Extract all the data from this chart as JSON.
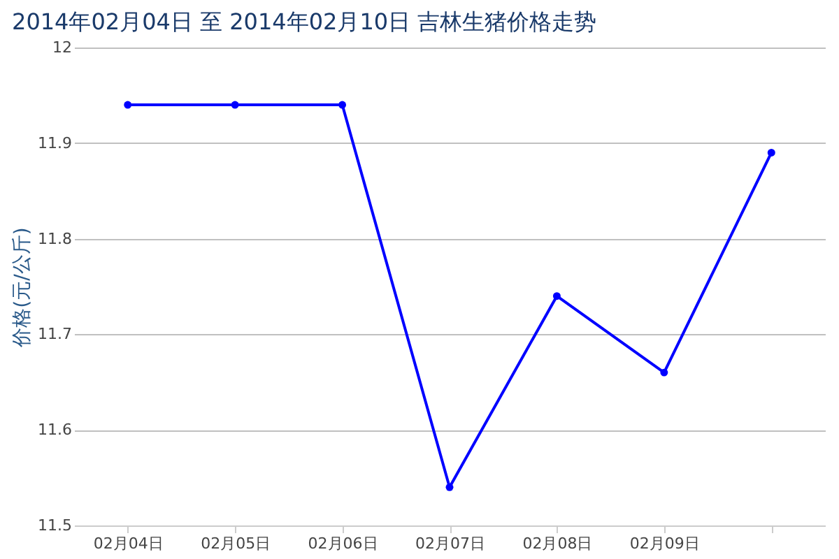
{
  "chart_data": {
    "type": "line",
    "title": "2014年02月04日 至 2014年02月10日 吉林生猪价格走势",
    "ylabel": "价格(元/公斤)",
    "categories": [
      "02月04日",
      "02月05日",
      "02月06日",
      "02月07日",
      "02月08日",
      "02月09日",
      null
    ],
    "series": [
      {
        "color": "#0000ff",
        "values": [
          11.94,
          11.94,
          11.94,
          11.54,
          11.74,
          11.66,
          11.89
        ]
      }
    ],
    "ylim": [
      11.5,
      12
    ],
    "yticks": [
      11.5,
      11.6,
      11.7,
      11.8,
      11.9,
      12
    ],
    "grid": "y",
    "marker": "circle",
    "line_style": "solid"
  }
}
